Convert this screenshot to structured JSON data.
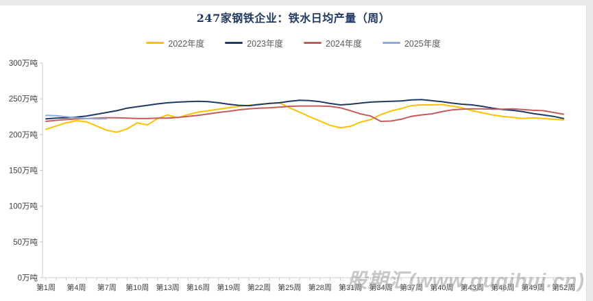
{
  "page": {
    "background_color": "#e9e9e9",
    "card_color": "#ffffff"
  },
  "title": "247家钢铁企业：铁水日均产量（周）",
  "title_color": "#1f3864",
  "watermark": "股期汇(www.guqihui.cn)",
  "legend": {
    "position": "top-center",
    "items": [
      "2022年度",
      "2023年度",
      "2024年度",
      "2025年度"
    ]
  },
  "axis": {
    "line_color": "#c9c9c9",
    "tick_label_color": "#3f3f3f",
    "y_unit": "万吨"
  },
  "chart_data": {
    "type": "line",
    "title": "247家钢铁企业：铁水日均产量（周）",
    "xlabel": "",
    "ylabel": "万吨",
    "ylim": [
      0,
      300
    ],
    "y_tick_values": [
      0,
      50,
      100,
      150,
      200,
      250,
      300
    ],
    "y_tick_labels": [
      "0万吨",
      "50万吨",
      "100万吨",
      "150万吨",
      "200万吨",
      "250万吨",
      "300万吨"
    ],
    "x_weeks_total": 52,
    "x_tick_weeks": [
      1,
      4,
      7,
      10,
      13,
      16,
      19,
      22,
      25,
      28,
      31,
      34,
      37,
      40,
      43,
      46,
      49,
      52
    ],
    "x_tick_labels": [
      "第1周",
      "第4周",
      "第7周",
      "第10周",
      "第13周",
      "第16周",
      "第19周",
      "第22周",
      "第25周",
      "第28周",
      "第31周",
      "第34周",
      "第37周",
      "第40周",
      "第43周",
      "第46周",
      "第49周",
      "第52周"
    ],
    "grid": false,
    "legend_position": "top",
    "series": [
      {
        "name": "2022年度",
        "color": "#ffc000",
        "start_week": 1,
        "values": [
          207.5,
          212,
          216.5,
          219.5,
          218,
          212,
          206,
          203.5,
          208,
          216.5,
          213.5,
          222.5,
          227.5,
          223.5,
          228,
          231.5,
          233.5,
          235.5,
          237.5,
          239.5,
          241,
          242.5,
          243.5,
          244.5,
          237.5,
          231.5,
          225,
          219,
          213,
          209.5,
          211.5,
          217.5,
          221,
          228,
          233,
          236.5,
          240.5,
          241.5,
          241.5,
          242,
          240,
          237.5,
          233.5,
          230.5,
          227.5,
          225.5,
          224,
          222.5,
          223.5,
          222.5,
          221.5,
          220.5
        ]
      },
      {
        "name": "2023年度",
        "color": "#1f3864",
        "start_week": 1,
        "values": [
          222,
          223,
          223.5,
          224.5,
          226,
          228.5,
          231,
          233.5,
          237,
          239,
          241,
          243,
          244.5,
          245.5,
          246,
          246.5,
          246,
          244.5,
          242.5,
          241,
          240.5,
          242,
          243.5,
          244.5,
          246.5,
          248,
          247.5,
          246,
          243.5,
          241.5,
          242.5,
          244,
          245.5,
          246,
          246.5,
          247,
          248.5,
          249,
          247.5,
          246,
          244,
          242.5,
          241.5,
          239.5,
          237,
          235,
          234,
          232,
          229.5,
          227.5,
          225.5,
          222.5
        ]
      },
      {
        "name": "2024年度",
        "color": "#c55a5a",
        "start_week": 1,
        "values": [
          218.5,
          220,
          221,
          222,
          222.5,
          223,
          223.5,
          223.5,
          223,
          222.5,
          222.5,
          223,
          223,
          224,
          225.5,
          227,
          229,
          231,
          232.5,
          234.5,
          236,
          237,
          237.5,
          238.5,
          239.5,
          240,
          240,
          240,
          239.5,
          237.5,
          233.5,
          229,
          226,
          218.5,
          219,
          221.5,
          225.5,
          227.5,
          229,
          232,
          234.5,
          235.5,
          236,
          236,
          235.5,
          235.5,
          236,
          235,
          234,
          233.5,
          231,
          228.5
        ]
      },
      {
        "name": "2025年度",
        "color": "#8ea9db",
        "start_week": 1,
        "values": [
          227,
          226.5,
          225,
          223.5,
          222.5,
          222,
          222.3
        ]
      }
    ]
  }
}
